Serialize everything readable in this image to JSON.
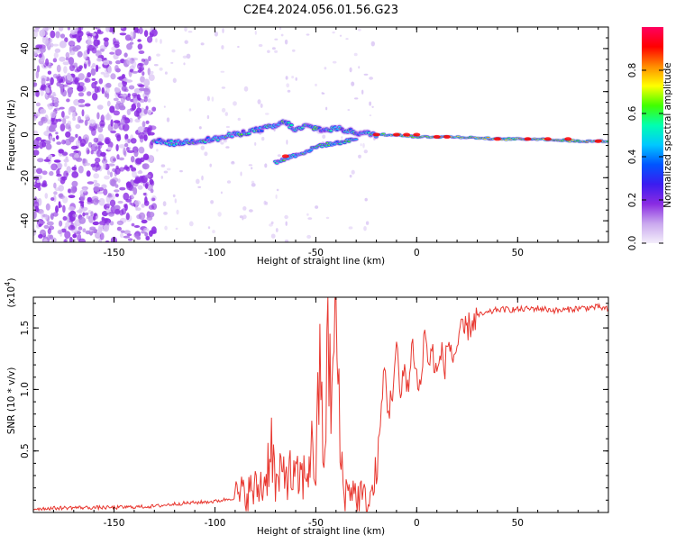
{
  "title": "C2E4.2024.056.01.56.G23",
  "chart_data": [
    {
      "type": "heatmap",
      "xlabel": "Height of straight line (km)",
      "ylabel": "Frequency (Hz)",
      "xlim": [
        -190,
        95
      ],
      "ylim": [
        -50,
        50
      ],
      "x_ticks": [
        -150,
        -100,
        -50,
        0,
        50
      ],
      "y_ticks": [
        -40,
        -20,
        0,
        20,
        40
      ],
      "colorbar": {
        "label": "Normalized spectral amplitude",
        "range": [
          0,
          1
        ],
        "ticks": [
          0.0,
          0.2,
          0.4,
          0.6,
          0.8
        ],
        "colors": [
          "#f4eefb",
          "#c9a8ee",
          "#8a2be2",
          "#3b1cf0",
          "#0055ff",
          "#00c8ff",
          "#00ffb0",
          "#40ff00",
          "#ffff00",
          "#ff8c00",
          "#ff0000",
          "#ff0060"
        ]
      },
      "ridge": [
        {
          "x": -130,
          "y": -3
        },
        {
          "x": -120,
          "y": -4
        },
        {
          "x": -110,
          "y": -3
        },
        {
          "x": -100,
          "y": -2
        },
        {
          "x": -90,
          "y": 0
        },
        {
          "x": -80,
          "y": 2
        },
        {
          "x": -70,
          "y": 4
        },
        {
          "x": -65,
          "y": 6
        },
        {
          "x": -60,
          "y": 2
        },
        {
          "x": -55,
          "y": 4
        },
        {
          "x": -45,
          "y": 2
        },
        {
          "x": -40,
          "y": 3
        },
        {
          "x": -30,
          "y": 1
        },
        {
          "x": -20,
          "y": 0
        },
        {
          "x": -10,
          "y": 0
        },
        {
          "x": 0,
          "y": -1
        },
        {
          "x": 10,
          "y": -1
        },
        {
          "x": 20,
          "y": -1
        },
        {
          "x": 40,
          "y": -2
        },
        {
          "x": 60,
          "y": -2
        },
        {
          "x": 80,
          "y": -3
        },
        {
          "x": 95,
          "y": -3
        }
      ],
      "secondary_branch": [
        {
          "x": -70,
          "y": -13
        },
        {
          "x": -62,
          "y": -10
        },
        {
          "x": -55,
          "y": -8
        },
        {
          "x": -48,
          "y": -5
        },
        {
          "x": -40,
          "y": -4
        },
        {
          "x": -30,
          "y": -2
        }
      ]
    },
    {
      "type": "line",
      "xlabel": "Height of straight line (km)",
      "ylabel": "SNR (10 * v/v)",
      "y_multiplier": "(x10",
      "y_multiplier_exp": "4",
      "y_multiplier_close": ")",
      "xlim": [
        -190,
        95
      ],
      "ylim": [
        0,
        1.75
      ],
      "x_ticks": [
        -150,
        -100,
        -50,
        0,
        50
      ],
      "y_ticks": [
        0.5,
        1.0,
        1.5
      ],
      "y_tick_labels": [
        "0.5",
        "1.0",
        "1.5"
      ],
      "color": "#e8372f",
      "series": [
        {
          "x": [
            -190,
            -170,
            -150,
            -130,
            -120,
            -110,
            -100,
            -90,
            -80,
            -75,
            -72,
            -70,
            -65,
            -60,
            -55,
            -52,
            -50,
            -48,
            -46,
            -44,
            -42,
            -40,
            -38,
            -36,
            -34,
            -32,
            -30,
            -28,
            -26,
            -24,
            -22,
            -20,
            -18,
            -16,
            -14,
            -12,
            -10,
            -8,
            -6,
            -4,
            -2,
            0,
            2,
            4,
            6,
            8,
            10,
            12,
            14,
            16,
            18,
            20,
            22,
            25,
            28,
            30,
            35,
            40,
            50,
            60,
            70,
            80,
            90,
            95
          ],
          "y": [
            0.03,
            0.04,
            0.04,
            0.05,
            0.07,
            0.08,
            0.09,
            0.12,
            0.18,
            0.25,
            0.6,
            0.2,
            0.35,
            0.25,
            0.3,
            0.5,
            0.35,
            1.2,
            0.4,
            1.3,
            0.9,
            1.75,
            0.5,
            0.2,
            0.15,
            0.25,
            0.1,
            0.15,
            0.1,
            0.08,
            0.15,
            0.3,
            0.7,
            1.2,
            0.8,
            1.0,
            1.35,
            0.9,
            1.2,
            1.0,
            1.4,
            1.1,
            1.0,
            1.5,
            1.2,
            1.3,
            1.1,
            1.3,
            1.2,
            1.4,
            1.25,
            1.35,
            1.45,
            1.5,
            1.55,
            1.6,
            1.62,
            1.65,
            1.65,
            1.66,
            1.64,
            1.66,
            1.67,
            1.65
          ]
        }
      ]
    }
  ]
}
